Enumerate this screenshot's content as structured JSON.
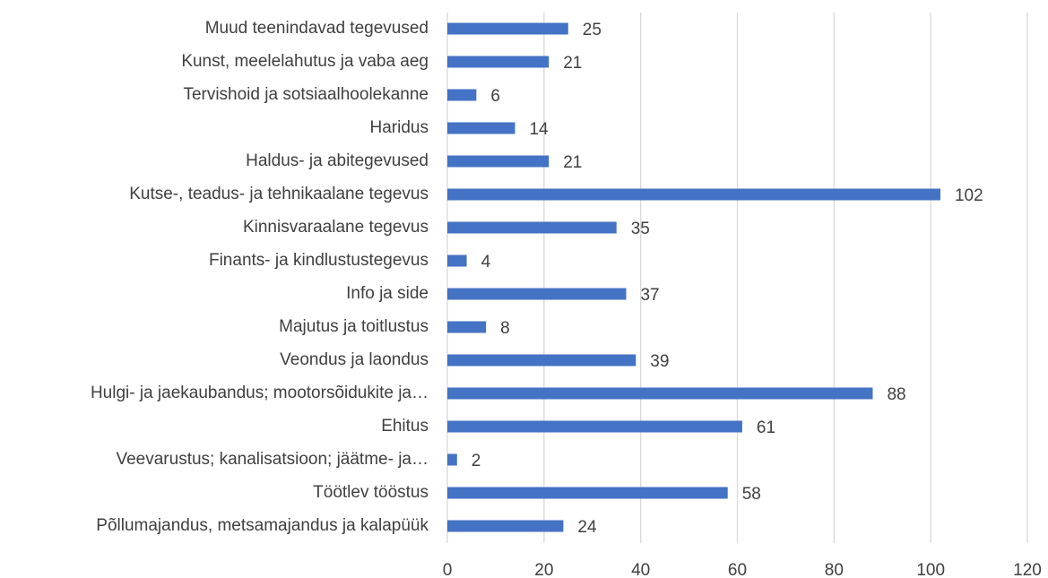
{
  "chart_data": {
    "type": "bar",
    "orientation": "horizontal",
    "color": "#4472c4",
    "grid": true,
    "categories": [
      "Muud teenindavad tegevused",
      "Kunst, meelelahutus ja vaba aeg",
      "Tervishoid ja sotsiaalhoolekanne",
      "Haridus",
      "Haldus- ja abitegevused",
      "Kutse-, teadus- ja tehnikaalane tegevus",
      "Kinnisvaraalane tegevus",
      "Finants- ja kindlustustegevus",
      "Info ja side",
      "Majutus ja toitlustus",
      "Veondus ja laondus",
      "Hulgi- ja jaekaubandus; mootorsõidukite ja…",
      "Ehitus",
      "Veevarustus; kanalisatsioon; jäätme- ja…",
      "Töötlev tööstus",
      "Põllumajandus, metsamajandus ja kalapüük"
    ],
    "values": [
      25,
      21,
      6,
      14,
      21,
      102,
      35,
      4,
      37,
      8,
      39,
      88,
      61,
      2,
      58,
      24
    ],
    "xlim": [
      0,
      120
    ],
    "xticks": [
      0,
      20,
      40,
      60,
      80,
      100,
      120
    ]
  }
}
